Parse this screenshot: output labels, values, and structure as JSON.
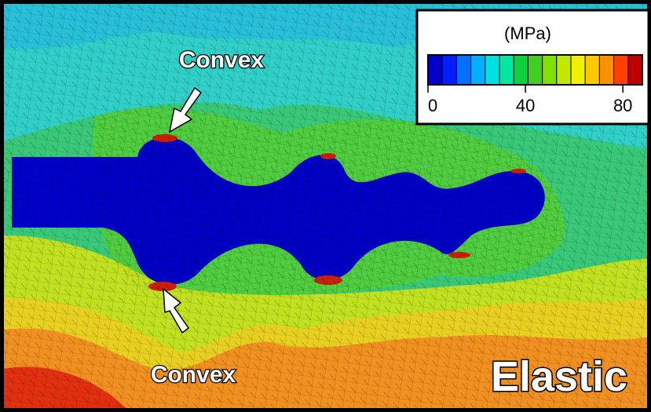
{
  "labels": {
    "top": "Convex",
    "bottom": "Convex",
    "condition": "Elastic"
  },
  "colorbar": {
    "title": "(MPa)",
    "lim": [
      0,
      88
    ],
    "ticks": [
      0,
      40,
      80
    ],
    "colors": [
      "#0000c8",
      "#0020ff",
      "#0070ff",
      "#00b0ff",
      "#00e0e0",
      "#00e8a0",
      "#10d040",
      "#40d020",
      "#80e000",
      "#c0e800",
      "#f0f000",
      "#ffc800",
      "#ff9000",
      "#ff4000",
      "#c00000"
    ]
  }
}
